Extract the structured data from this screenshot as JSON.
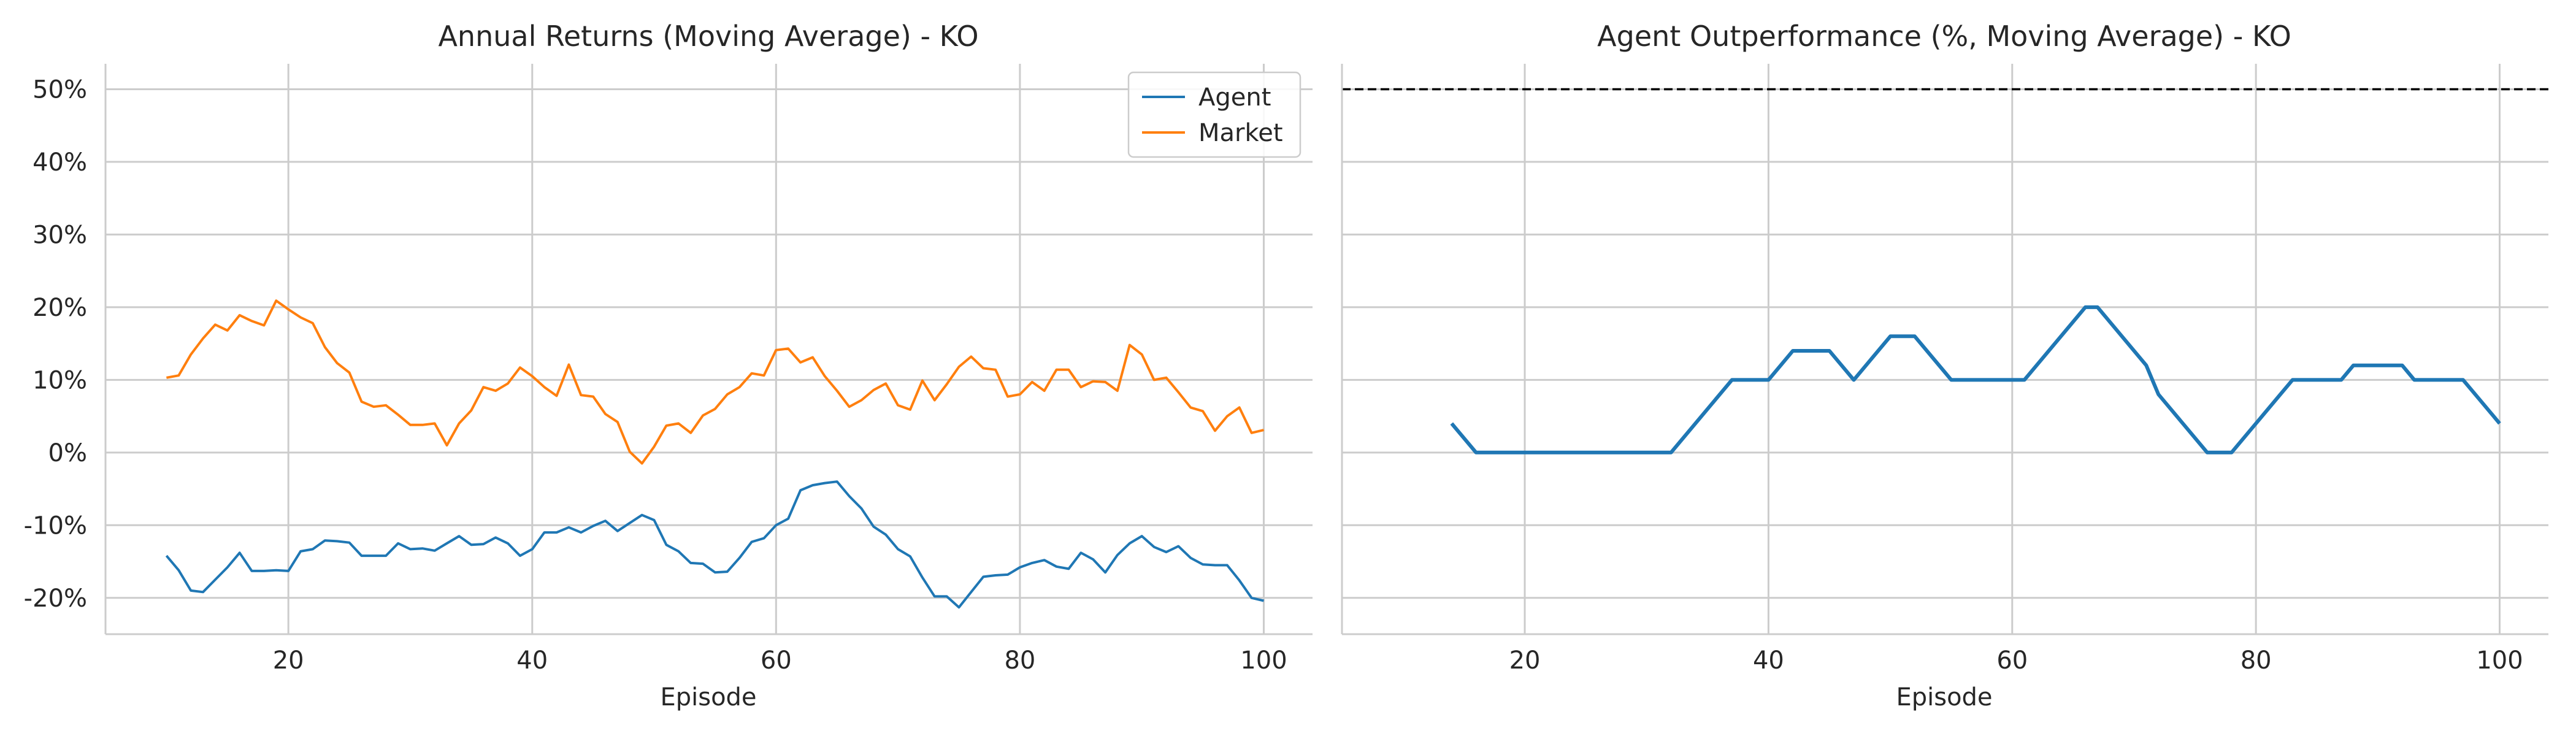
{
  "chart_data": [
    {
      "type": "line",
      "title": "Annual Returns (Moving Average) - KO",
      "xlabel": "Episode",
      "ylabel": "",
      "xlim": [
        5,
        104
      ],
      "ylim": [
        -0.25,
        0.535
      ],
      "x_ticks": [
        20,
        40,
        60,
        80,
        100
      ],
      "x_tick_labels": [
        "20",
        "40",
        "60",
        "80",
        "100"
      ],
      "y_ticks": [
        -0.2,
        -0.1,
        0.0,
        0.1,
        0.2,
        0.3,
        0.4,
        0.5
      ],
      "y_tick_labels": [
        "-20%",
        "-10%",
        "0%",
        "10%",
        "20%",
        "30%",
        "40%",
        "50%"
      ],
      "grid": true,
      "legend": {
        "position": "top-right",
        "entries": [
          "Agent",
          "Market"
        ]
      },
      "series": [
        {
          "name": "Agent",
          "color": "#1f77b4",
          "x": [
            10,
            11,
            12,
            13,
            14,
            15,
            16,
            17,
            18,
            19,
            20,
            21,
            22,
            23,
            24,
            25,
            26,
            27,
            28,
            29,
            30,
            31,
            32,
            33,
            34,
            35,
            36,
            37,
            38,
            39,
            40,
            41,
            42,
            43,
            44,
            45,
            46,
            47,
            48,
            49,
            50,
            51,
            52,
            53,
            54,
            55,
            56,
            57,
            58,
            59,
            60,
            61,
            62,
            63,
            64,
            65,
            66,
            67,
            68,
            69,
            70,
            71,
            72,
            73,
            74,
            75,
            76,
            77,
            78,
            79,
            80,
            81,
            82,
            83,
            84,
            85,
            86,
            87,
            88,
            89,
            90,
            91,
            92,
            93,
            94,
            95,
            96,
            97,
            98,
            99,
            100
          ],
          "values": [
            -0.142,
            -0.162,
            -0.19,
            -0.192,
            -0.175,
            -0.158,
            -0.138,
            -0.163,
            -0.163,
            -0.162,
            -0.163,
            -0.136,
            -0.133,
            -0.121,
            -0.122,
            -0.124,
            -0.142,
            -0.142,
            -0.142,
            -0.125,
            -0.133,
            -0.132,
            -0.135,
            -0.125,
            -0.115,
            -0.127,
            -0.126,
            -0.117,
            -0.125,
            -0.142,
            -0.133,
            -0.11,
            -0.11,
            -0.103,
            -0.11,
            -0.101,
            -0.094,
            -0.108,
            -0.097,
            -0.086,
            -0.093,
            -0.127,
            -0.136,
            -0.152,
            -0.153,
            -0.165,
            -0.164,
            -0.145,
            -0.123,
            -0.118,
            -0.1,
            -0.091,
            -0.052,
            -0.045,
            -0.042,
            -0.04,
            -0.06,
            -0.077,
            -0.102,
            -0.113,
            -0.133,
            -0.143,
            -0.172,
            -0.198,
            -0.198,
            -0.213,
            -0.192,
            -0.171,
            -0.169,
            -0.168,
            -0.158,
            -0.152,
            -0.148,
            -0.157,
            -0.16,
            -0.138,
            -0.147,
            -0.165,
            -0.141,
            -0.125,
            -0.115,
            -0.13,
            -0.137,
            -0.129,
            -0.145,
            -0.154,
            -0.155,
            -0.155,
            -0.176,
            -0.2,
            -0.204
          ]
        },
        {
          "name": "Market",
          "color": "#ff7f0e",
          "x": [
            10,
            11,
            12,
            13,
            14,
            15,
            16,
            17,
            18,
            19,
            20,
            21,
            22,
            23,
            24,
            25,
            26,
            27,
            28,
            29,
            30,
            31,
            32,
            33,
            34,
            35,
            36,
            37,
            38,
            39,
            40,
            41,
            42,
            43,
            44,
            45,
            46,
            47,
            48,
            49,
            50,
            51,
            52,
            53,
            54,
            55,
            56,
            57,
            58,
            59,
            60,
            61,
            62,
            63,
            64,
            65,
            66,
            67,
            68,
            69,
            70,
            71,
            72,
            73,
            74,
            75,
            76,
            77,
            78,
            79,
            80,
            81,
            82,
            83,
            84,
            85,
            86,
            87,
            88,
            89,
            90,
            91,
            92,
            93,
            94,
            95,
            96,
            97,
            98,
            99,
            100
          ],
          "values": [
            0.103,
            0.106,
            0.135,
            0.157,
            0.176,
            0.168,
            0.189,
            0.181,
            0.175,
            0.209,
            0.197,
            0.186,
            0.178,
            0.145,
            0.123,
            0.11,
            0.07,
            0.063,
            0.065,
            0.052,
            0.038,
            0.038,
            0.04,
            0.01,
            0.04,
            0.058,
            0.09,
            0.085,
            0.095,
            0.117,
            0.105,
            0.09,
            0.078,
            0.121,
            0.079,
            0.077,
            0.053,
            0.042,
            0.001,
            -0.015,
            0.008,
            0.037,
            0.04,
            0.027,
            0.051,
            0.06,
            0.08,
            0.09,
            0.109,
            0.106,
            0.141,
            0.143,
            0.124,
            0.131,
            0.105,
            0.085,
            0.063,
            0.072,
            0.086,
            0.095,
            0.065,
            0.059,
            0.099,
            0.072,
            0.094,
            0.118,
            0.132,
            0.116,
            0.114,
            0.077,
            0.08,
            0.097,
            0.085,
            0.114,
            0.114,
            0.09,
            0.098,
            0.097,
            0.085,
            0.148,
            0.135,
            0.1,
            0.103,
            0.083,
            0.062,
            0.057,
            0.03,
            0.05,
            0.062,
            0.027,
            0.031
          ]
        }
      ]
    },
    {
      "type": "line",
      "title": "Agent Outperformance (%, Moving Average) - KO",
      "xlabel": "Episode",
      "ylabel": "",
      "xlim": [
        5,
        104
      ],
      "ylim": [
        -0.25,
        0.535
      ],
      "x_ticks": [
        20,
        40,
        60,
        80,
        100
      ],
      "x_tick_labels": [
        "20",
        "40",
        "60",
        "80",
        "100"
      ],
      "y_ticks": [
        -0.2,
        -0.1,
        0.0,
        0.1,
        0.2,
        0.3,
        0.4,
        0.5
      ],
      "grid": true,
      "reference_line": {
        "y": 0.5,
        "style": "dashed",
        "color": "#000000"
      },
      "series": [
        {
          "color": "#1f77b4",
          "x": [
            14,
            16,
            32,
            37,
            40,
            42,
            45,
            47,
            50,
            52,
            55,
            61,
            66,
            67,
            71,
            72,
            76,
            78,
            83,
            87,
            88,
            92,
            93,
            97,
            100
          ],
          "values": [
            0.04,
            0.0,
            0.0,
            0.1,
            0.1,
            0.14,
            0.14,
            0.1,
            0.16,
            0.16,
            0.1,
            0.1,
            0.2,
            0.2,
            0.12,
            0.08,
            0.0,
            0.0,
            0.1,
            0.1,
            0.12,
            0.12,
            0.1,
            0.1,
            0.04
          ]
        }
      ]
    }
  ]
}
